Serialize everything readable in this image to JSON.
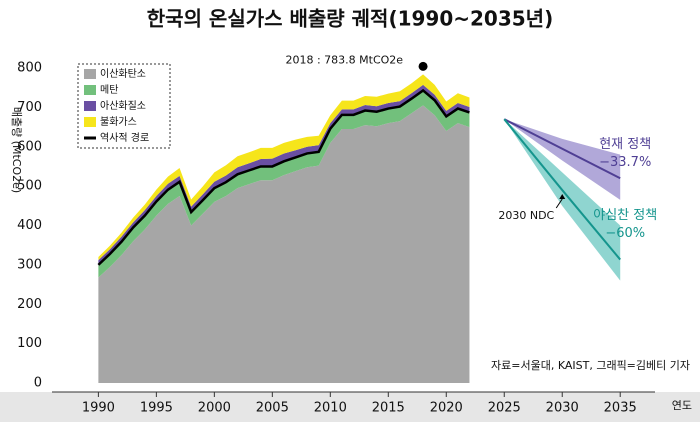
{
  "chart_data": {
    "type": "area",
    "title": "한국의 온실가스 배출량 궤적(1990~2035년)",
    "y_label": "배출량 (MtCO2e)",
    "x_label": "연도",
    "source": "자료=서울대, KAIST, 그래픽=김베티 기자",
    "xlim": [
      1986,
      2038
    ],
    "xticks": [
      1990,
      1995,
      2000,
      2005,
      2010,
      2015,
      2020,
      2025,
      2030,
      2035
    ],
    "ylim": [
      0,
      800
    ],
    "yticks": [
      0,
      100,
      200,
      300,
      400,
      500,
      600,
      700,
      800
    ],
    "x": [
      1990,
      1991,
      1992,
      1993,
      1994,
      1995,
      1996,
      1997,
      1998,
      1999,
      2000,
      2001,
      2002,
      2003,
      2004,
      2005,
      2006,
      2007,
      2008,
      2009,
      2010,
      2011,
      2012,
      2013,
      2014,
      2015,
      2016,
      2017,
      2018,
      2019,
      2020,
      2021,
      2022
    ],
    "series": [
      {
        "name": "이산화탄소",
        "color": "#a6a6a6",
        "stacked": true,
        "values": [
          268,
          295,
          325,
          360,
          390,
          425,
          455,
          475,
          400,
          430,
          460,
          475,
          495,
          505,
          515,
          515,
          528,
          538,
          548,
          552,
          610,
          645,
          645,
          655,
          652,
          660,
          665,
          685,
          705,
          680,
          640,
          660,
          650
        ]
      },
      {
        "name": "메탄",
        "color": "#72c07c",
        "stacked": true,
        "values": [
          32,
          33,
          34,
          35,
          35,
          36,
          36,
          36,
          34,
          34,
          35,
          35,
          35,
          35,
          35,
          35,
          35,
          35,
          35,
          35,
          36,
          36,
          36,
          37,
          37,
          37,
          37,
          37,
          38,
          38,
          37,
          37,
          37
        ]
      },
      {
        "name": "아산화질소",
        "color": "#6a4fa3",
        "stacked": true,
        "values": [
          12,
          12,
          13,
          13,
          14,
          14,
          15,
          15,
          14,
          15,
          16,
          17,
          18,
          18,
          19,
          20,
          20,
          18,
          17,
          17,
          14,
          14,
          14,
          14,
          14,
          14,
          14,
          14,
          14,
          14,
          14,
          14,
          14
        ]
      },
      {
        "name": "불화가스",
        "color": "#f6e51b",
        "stacked": true,
        "values": [
          8,
          9,
          10,
          12,
          14,
          16,
          18,
          20,
          18,
          20,
          24,
          26,
          28,
          28,
          28,
          27,
          27,
          27,
          25,
          24,
          20,
          22,
          22,
          23,
          24,
          24,
          25,
          25,
          26.8,
          25,
          24,
          25,
          24
        ]
      },
      {
        "name": "역사적 경로",
        "color": "#000000",
        "stacked": false,
        "values": [
          300,
          328,
          359,
          395,
          425,
          461,
          491,
          511,
          434,
          464,
          495,
          510,
          530,
          540,
          550,
          550,
          563,
          573,
          583,
          587,
          646,
          681,
          681,
          692,
          689,
          697,
          702,
          722,
          743,
          718,
          677,
          697,
          687
        ]
      }
    ],
    "projections": [
      {
        "name": "현재 정책",
        "change": {
          "value": -33.7,
          "label": "−33.7%"
        },
        "color": "#4f3f94",
        "band_color": "#b1a8d9",
        "x": [
          2025,
          2030,
          2035
        ],
        "values": [
          670,
          595,
          520
        ],
        "upper": [
          670,
          620,
          580
        ],
        "lower": [
          670,
          565,
          465
        ]
      },
      {
        "name": "야심찬 정책",
        "change": {
          "value": -60,
          "label": "−60%"
        },
        "color": "#15958d",
        "band_color": "#8fd5d0",
        "x": [
          2025,
          2030,
          2035
        ],
        "values": [
          670,
          490,
          313.5
        ],
        "upper": [
          670,
          535,
          400
        ],
        "lower": [
          670,
          450,
          260
        ]
      }
    ],
    "annotations": [
      {
        "x": 2018,
        "y": 783.8,
        "label": "2018 : 783.8 MtCO2e"
      },
      {
        "x": 2030,
        "y": 480,
        "label": "2030 NDC"
      }
    ]
  }
}
